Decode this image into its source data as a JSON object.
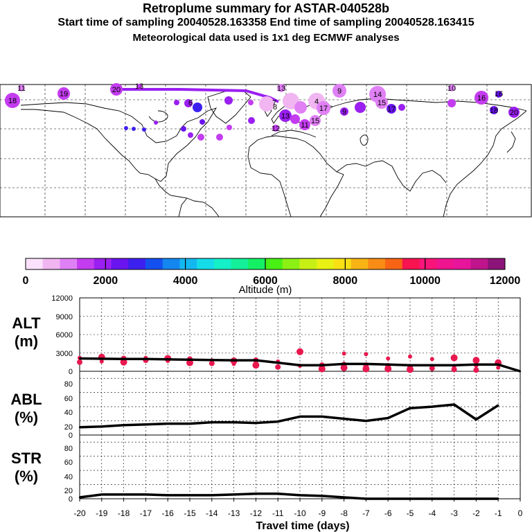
{
  "header": {
    "title": "Retroplume summary for ASTAR-040528b",
    "sampling": "Start time of sampling 20040528.163358     End time of sampling 20040528.163415",
    "met": "Meteorological data used is 1x1 deg ECMWF analyses"
  },
  "colors": {
    "line": "#000000",
    "alt_dots": "#e8184f",
    "track": "#9a1ff0",
    "scale": [
      "#fbe1fb",
      "#f1b5f1",
      "#e080f5",
      "#c43cf0",
      "#9a1ff0",
      "#6a14f0",
      "#3c20f0",
      "#1450f0",
      "#1486f0",
      "#14b8f0",
      "#14dce8",
      "#14f0c8",
      "#14f09a",
      "#14f064",
      "#48f014",
      "#8cf014",
      "#c8f014",
      "#e8f014",
      "#f8e014",
      "#f8b414",
      "#f88c14",
      "#f86414",
      "#f81450",
      "#f81478",
      "#f01490",
      "#e8149c",
      "#c0148c",
      "#8c1478"
    ]
  },
  "map_labels": [
    "11",
    "19",
    "20",
    "13",
    "13",
    "9",
    "14",
    "15",
    "16",
    "16",
    "18",
    "17",
    "4",
    "6",
    "7",
    "8",
    "9",
    "10",
    "11",
    "12",
    "13",
    "15",
    "17",
    "20",
    "18"
  ],
  "colorbar": {
    "ticks": [
      "0",
      "2000",
      "4000",
      "6000",
      "8000",
      "10000",
      "12000"
    ],
    "label": "Altitude (m)"
  },
  "panels": {
    "alt": {
      "label1": "ALT",
      "label2": "(m)",
      "yticks": [
        "12000",
        "9000",
        "6000",
        "3000",
        "0"
      ]
    },
    "abl": {
      "label1": "ABL",
      "label2": "(%)",
      "yticks": [
        "80",
        "60",
        "40",
        "20",
        "0"
      ]
    },
    "str": {
      "label1": "STR",
      "label2": "(%)",
      "yticks": [
        "80",
        "60",
        "40",
        "20",
        "0"
      ]
    }
  },
  "xaxis": {
    "ticks": [
      "-20",
      "-19",
      "-18",
      "-17",
      "-16",
      "-15",
      "-14",
      "-13",
      "-12",
      "-11",
      "-10",
      "-9",
      "-8",
      "-7",
      "-6",
      "-5",
      "-4",
      "-3",
      "-2",
      "-1",
      "0"
    ],
    "label": "Travel time (days)"
  },
  "chart_data": [
    {
      "type": "line",
      "title": "ALT",
      "xlabel": "Travel time (days)",
      "ylabel": "(m)",
      "xlim": [
        -20,
        0
      ],
      "ylim": [
        0,
        12000
      ],
      "x": [
        -20,
        -19,
        -18,
        -17,
        -16,
        -15,
        -14,
        -13,
        -12,
        -11,
        -10,
        -9,
        -8,
        -7,
        -6,
        -5,
        -4,
        -3,
        -2,
        -1,
        0
      ],
      "series": [
        {
          "name": "ALT",
          "values": [
            2100,
            2050,
            2000,
            2000,
            1950,
            1900,
            1850,
            1800,
            1800,
            1400,
            1000,
            1000,
            1200,
            1200,
            1100,
            1000,
            1000,
            1000,
            1100,
            1100,
            0
          ]
        }
      ],
      "scatter_series": [
        {
          "name": "ALT particles",
          "points": [
            [
              -20,
              2200
            ],
            [
              -20,
              1500
            ],
            [
              -19,
              2300
            ],
            [
              -19,
              1600
            ],
            [
              -18,
              2100
            ],
            [
              -18,
              1500
            ],
            [
              -17,
              2200
            ],
            [
              -17,
              1800
            ],
            [
              -16,
              2100
            ],
            [
              -16,
              1700
            ],
            [
              -15,
              2000
            ],
            [
              -15,
              1400
            ],
            [
              -14,
              1800
            ],
            [
              -14,
              1300
            ],
            [
              -13,
              1700
            ],
            [
              -13,
              1200
            ],
            [
              -12,
              1800
            ],
            [
              -12,
              1000
            ],
            [
              -11,
              1600
            ],
            [
              -11,
              700
            ],
            [
              -10,
              3200
            ],
            [
              -10,
              900
            ],
            [
              -9,
              1000
            ],
            [
              -9,
              400
            ],
            [
              -8,
              2900
            ],
            [
              -8,
              1100
            ],
            [
              -8,
              600
            ],
            [
              -7,
              2800
            ],
            [
              -7,
              1000
            ],
            [
              -7,
              400
            ],
            [
              -6,
              2100
            ],
            [
              -6,
              900
            ],
            [
              -6,
              400
            ],
            [
              -5,
              2400
            ],
            [
              -5,
              700
            ],
            [
              -5,
              300
            ],
            [
              -4,
              2000
            ],
            [
              -4,
              500
            ],
            [
              -3,
              2200
            ],
            [
              -3,
              700
            ],
            [
              -3,
              300
            ],
            [
              -2,
              1800
            ],
            [
              -2,
              900
            ],
            [
              -2,
              200
            ],
            [
              -1,
              1400
            ],
            [
              -1,
              600
            ]
          ]
        }
      ]
    },
    {
      "type": "line",
      "title": "ABL",
      "xlabel": "Travel time (days)",
      "ylabel": "(%)",
      "xlim": [
        -20,
        0
      ],
      "ylim": [
        0,
        90
      ],
      "x": [
        -20,
        -19,
        -18,
        -17,
        -16,
        -15,
        -14,
        -13,
        -12,
        -11,
        -10,
        -9,
        -8,
        -7,
        -6,
        -5,
        -4,
        -3,
        -2,
        -1
      ],
      "series": [
        {
          "name": "ABL",
          "values": [
            11,
            12,
            14,
            15,
            16,
            16,
            18,
            18,
            17,
            19,
            26,
            26,
            23,
            20,
            24,
            38,
            40,
            43,
            22,
            42
          ]
        }
      ]
    },
    {
      "type": "line",
      "title": "STR",
      "xlabel": "Travel time (days)",
      "ylabel": "(%)",
      "xlim": [
        -20,
        0
      ],
      "ylim": [
        0,
        90
      ],
      "x": [
        -20,
        -19,
        -18,
        -17,
        -16,
        -15,
        -14,
        -13,
        -12,
        -11,
        -10,
        -9,
        -8,
        -7,
        -6,
        -5,
        -4,
        -3,
        -2,
        -1
      ],
      "series": [
        {
          "name": "STR",
          "values": [
            2,
            6,
            6,
            6,
            5,
            5,
            5,
            6,
            7,
            7,
            5,
            4,
            2,
            0,
            0,
            0,
            0,
            0,
            0,
            0
          ]
        }
      ]
    }
  ]
}
